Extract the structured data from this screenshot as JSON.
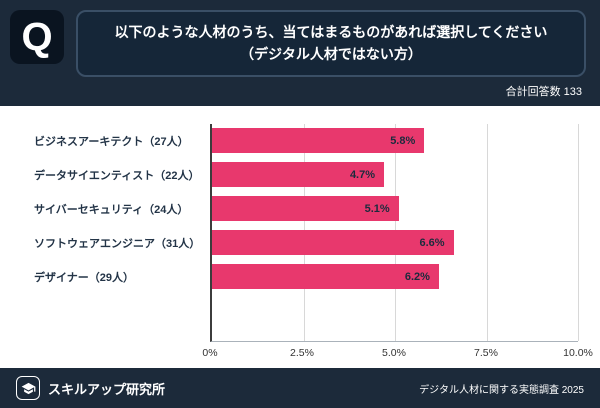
{
  "colors": {
    "background": "#1c2a3a",
    "chart_background": "#ffffff",
    "bar": "#e8386d",
    "text_light": "#ffffff",
    "text_dark": "#1b2b3d"
  },
  "header": {
    "q_logo": "Q",
    "title_line1": "以下のような人材のうち、当てはまるものがあれば選択してください",
    "title_line2": "（デジタル人材ではない方）",
    "total_label": "合計回答数 133"
  },
  "chart_data": {
    "type": "bar",
    "orientation": "horizontal",
    "title": "以下のような人材のうち、当てはまるものがあれば選択してください（デジタル人材ではない方）",
    "categories": [
      "ビジネスアーキテクト（27人）",
      "データサイエンティスト（22人）",
      "サイバーセキュリティ（24人）",
      "ソフトウェアエンジニア（31人）",
      "デザイナー（29人）"
    ],
    "values": [
      5.8,
      4.7,
      5.1,
      6.6,
      6.2
    ],
    "value_labels": [
      "5.8%",
      "4.7%",
      "5.1%",
      "6.6%",
      "6.2%"
    ],
    "xlabel": "",
    "ylabel": "",
    "xlim": [
      0,
      10
    ],
    "x_ticks": [
      "0%",
      "2.5%",
      "5.0%",
      "7.5%",
      "10.0%"
    ],
    "x_tick_positions": [
      0,
      25,
      50,
      75,
      100
    ],
    "gridline_positions": [
      25,
      50,
      75,
      100
    ],
    "grid": "vertical",
    "legend": "none",
    "bar_color": "#e8386d"
  },
  "footer": {
    "brand": "スキルアップ研究所",
    "source": "デジタル人材に関する実態調査 2025"
  }
}
